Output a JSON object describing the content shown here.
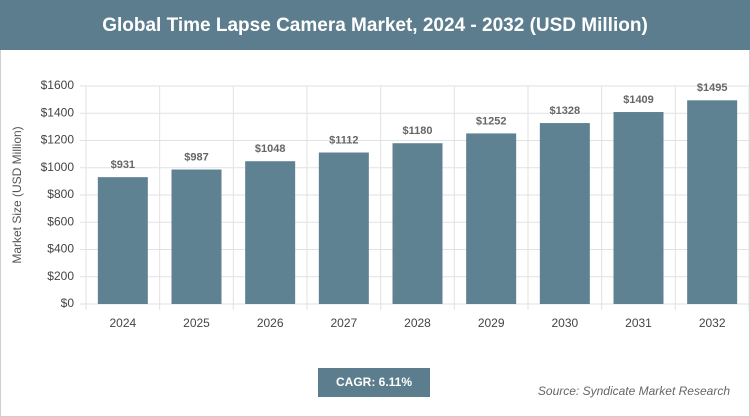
{
  "chart_data": {
    "type": "bar",
    "title": "Global Time Lapse Camera Market, 2024 - 2032 (USD Million)",
    "y_axis_label": "Market Size (USD Million)",
    "categories": [
      "2024",
      "2025",
      "2026",
      "2027",
      "2028",
      "2029",
      "2030",
      "2031",
      "2032"
    ],
    "values": [
      931,
      987,
      1048,
      1112,
      1180,
      1252,
      1328,
      1409,
      1495
    ],
    "value_labels": [
      "$931",
      "$987",
      "$1048",
      "$1112",
      "$1180",
      "$1252",
      "$1328",
      "$1409",
      "$1495"
    ],
    "color": "#5f8292",
    "ylim": [
      0,
      1600
    ],
    "yticks": [
      {
        "value": 0,
        "label": "$0"
      },
      {
        "value": 200,
        "label": "$200"
      },
      {
        "value": 400,
        "label": "$400"
      },
      {
        "value": 600,
        "label": "$600"
      },
      {
        "value": 800,
        "label": "$800"
      },
      {
        "value": 1000,
        "label": "$1000"
      },
      {
        "value": 1200,
        "label": "$1200"
      },
      {
        "value": 1400,
        "label": "$1400"
      },
      {
        "value": 1600,
        "label": "$1600"
      }
    ],
    "grid": true,
    "cagr": "CAGR: 6.11%",
    "source": "Source: Syndicate Market Research"
  }
}
